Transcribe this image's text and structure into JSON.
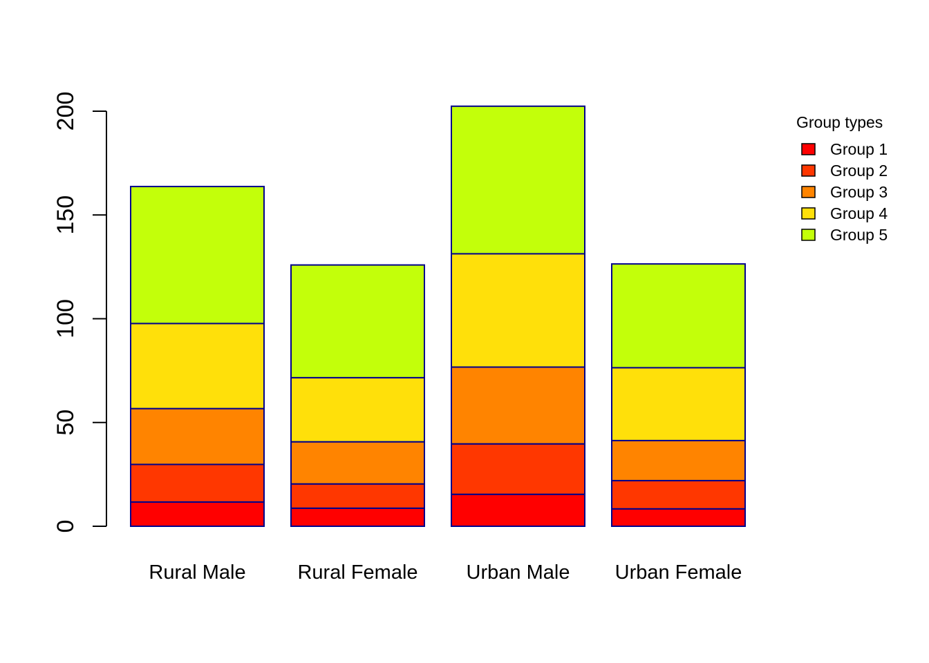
{
  "chart_data": {
    "type": "bar",
    "stacked": true,
    "title": "",
    "xlabel": "",
    "ylabel": "",
    "categories": [
      "Rural Male",
      "Rural Female",
      "Urban Male",
      "Urban Female"
    ],
    "series": [
      {
        "name": "Group 1",
        "color": "#FF0000",
        "values": [
          11.7,
          8.7,
          15.4,
          8.4
        ]
      },
      {
        "name": "Group 2",
        "color": "#FF3700",
        "values": [
          18.1,
          11.7,
          24.3,
          13.6
        ]
      },
      {
        "name": "Group 3",
        "color": "#FF8400",
        "values": [
          26.9,
          20.3,
          37.0,
          19.3
        ]
      },
      {
        "name": "Group 4",
        "color": "#FFE00A",
        "values": [
          41.0,
          30.9,
          54.6,
          35.1
        ]
      },
      {
        "name": "Group 5",
        "color": "#C3FF0A",
        "values": [
          66.0,
          54.3,
          71.1,
          50.0
        ]
      }
    ],
    "yticks": [
      0,
      50,
      100,
      150,
      200
    ],
    "ylim": [
      0,
      210
    ],
    "bar_border_color": "#00008B",
    "grid": false,
    "legend": {
      "title": "Group types",
      "position": "right"
    }
  }
}
